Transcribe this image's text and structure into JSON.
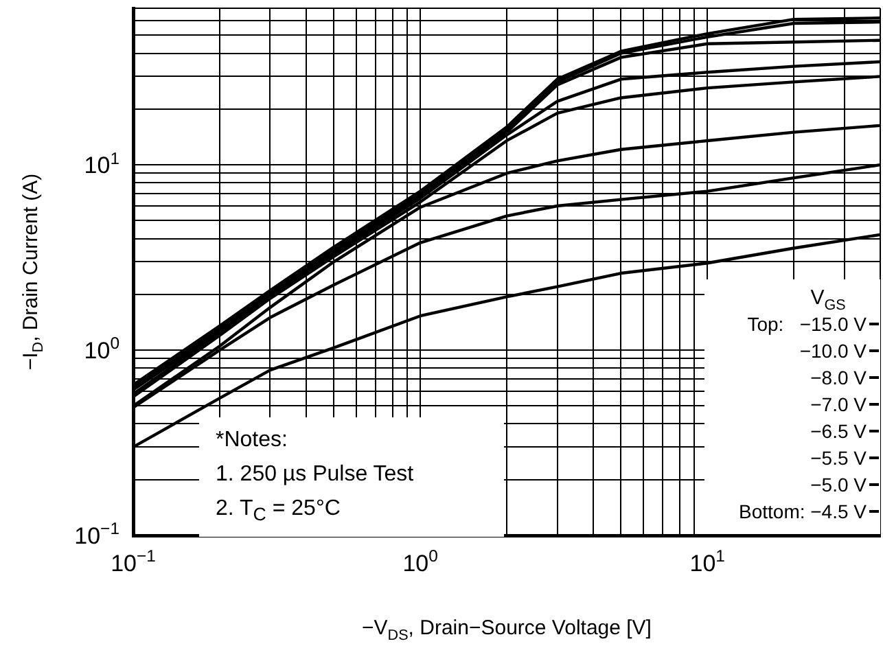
{
  "chart_data": {
    "type": "line",
    "xlabel": "−V$_{DS}$, Drain−Source Voltage [V]",
    "ylabel": "−I$_{D}$, Drain Current (A)",
    "log": "xy",
    "grid": true,
    "marker": "none",
    "line_style": "solid",
    "legend": "bottom right",
    "legend_title": "V$_{GS}$",
    "x": [
      0.1,
      0.2,
      0.3,
      0.5,
      1,
      2,
      3,
      5,
      10,
      20,
      40
    ],
    "xlim": [
      0.1,
      40
    ],
    "ylim": [
      0.1,
      70
    ],
    "xticks": [
      {
        "value": 0.1,
        "label": "10$^{−1}$"
      },
      {
        "value": 0.2,
        "label": null
      },
      {
        "value": 0.3,
        "label": null
      },
      {
        "value": 0.4,
        "label": null
      },
      {
        "value": 0.5,
        "label": null
      },
      {
        "value": 0.6,
        "label": null
      },
      {
        "value": 0.7,
        "label": null
      },
      {
        "value": 0.8,
        "label": null
      },
      {
        "value": 0.9,
        "label": null
      },
      {
        "value": 1,
        "label": "10$^{0}$"
      },
      {
        "value": 2,
        "label": null
      },
      {
        "value": 3,
        "label": null
      },
      {
        "value": 4,
        "label": null
      },
      {
        "value": 5,
        "label": null
      },
      {
        "value": 6,
        "label": null
      },
      {
        "value": 7,
        "label": null
      },
      {
        "value": 8,
        "label": null
      },
      {
        "value": 9,
        "label": null
      },
      {
        "value": 10,
        "label": "10$^{1}$"
      },
      {
        "value": 20,
        "label": null
      },
      {
        "value": 30,
        "label": null
      },
      {
        "value": 40,
        "label": null
      }
    ],
    "yticks": [
      {
        "value": 0.1,
        "label": "10$^{−1}$"
      },
      {
        "value": 0.2,
        "label": null
      },
      {
        "value": 0.3,
        "label": null
      },
      {
        "value": 0.4,
        "label": null
      },
      {
        "value": 0.5,
        "label": null
      },
      {
        "value": 0.6,
        "label": null
      },
      {
        "value": 0.7,
        "label": null
      },
      {
        "value": 0.8,
        "label": null
      },
      {
        "value": 0.9,
        "label": null
      },
      {
        "value": 1,
        "label": "10$^{0}$"
      },
      {
        "value": 2,
        "label": null
      },
      {
        "value": 3,
        "label": null
      },
      {
        "value": 4,
        "label": null
      },
      {
        "value": 5,
        "label": null
      },
      {
        "value": 6,
        "label": null
      },
      {
        "value": 7,
        "label": null
      },
      {
        "value": 8,
        "label": null
      },
      {
        "value": 9,
        "label": null
      },
      {
        "value": 10,
        "label": "10$^{1}$"
      },
      {
        "value": 20,
        "label": null
      },
      {
        "value": 30,
        "label": null
      },
      {
        "value": 40,
        "label": null
      },
      {
        "value": 50,
        "label": null
      },
      {
        "value": 60,
        "label": null
      },
      {
        "value": 70,
        "label": null
      }
    ],
    "series": [
      {
        "name": "Top:   −15.0 V",
        "color": "#000000",
        "values": [
          0.65,
          1.35,
          2.1,
          3.6,
          7.2,
          16,
          29,
          41,
          51,
          61,
          62
        ]
      },
      {
        "name": "−10.0 V",
        "color": "#000000",
        "values": [
          0.63,
          1.3,
          2.05,
          3.5,
          7.0,
          15.5,
          28,
          40,
          49,
          58,
          59
        ]
      },
      {
        "name": "−8.0 V",
        "color": "#000000",
        "values": [
          0.61,
          1.27,
          2.0,
          3.4,
          6.8,
          15,
          27,
          38,
          45,
          46,
          47
        ]
      },
      {
        "name": "−7.0 V",
        "color": "#000000",
        "values": [
          0.58,
          1.23,
          1.95,
          3.3,
          6.6,
          14.5,
          22,
          29,
          31.6,
          34,
          36
        ]
      },
      {
        "name": "−6.5 V",
        "color": "#000000",
        "values": [
          0.56,
          1.2,
          1.9,
          3.2,
          6.3,
          13.5,
          19,
          23,
          26,
          28,
          30
        ]
      },
      {
        "name": "−5.5 V",
        "color": "#000000",
        "values": [
          0.5,
          1.05,
          1.7,
          3.0,
          5.9,
          9.0,
          10.5,
          12.1,
          13.5,
          15,
          16.3
        ]
      },
      {
        "name": "−5.0 V",
        "color": "#000000",
        "values": [
          0.49,
          1.0,
          1.5,
          2.25,
          3.8,
          5.3,
          6.0,
          6.5,
          7.2,
          8.5,
          10
        ]
      },
      {
        "name": "Bottom: −4.5 V",
        "color": "#000000",
        "values": [
          0.3,
          0.55,
          0.78,
          1.03,
          1.53,
          1.94,
          2.2,
          2.6,
          2.95,
          3.55,
          4.2
        ]
      }
    ],
    "annotations": [
      "*Notes:",
      "1. 250 µs Pulse Test",
      "2. T$_{C}$ = 25°C"
    ]
  }
}
